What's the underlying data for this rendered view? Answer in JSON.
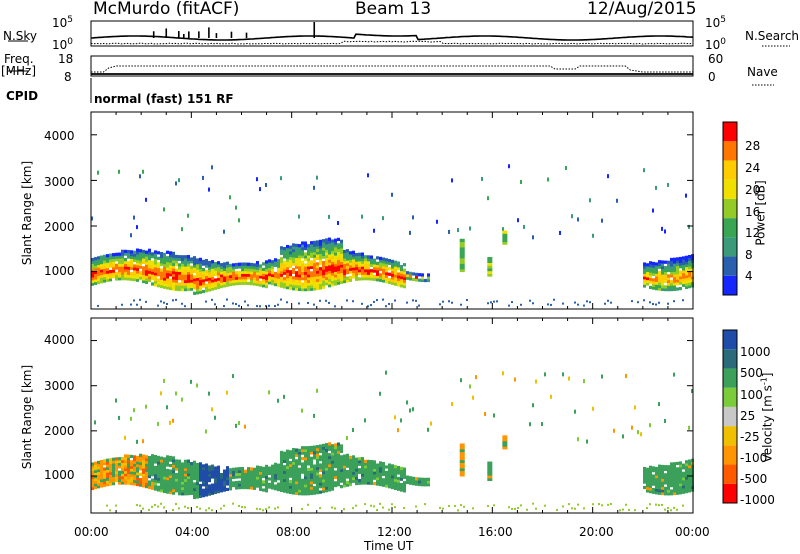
{
  "header": {
    "station": "McMurdo (fitACF)",
    "beam": "Beam 13",
    "date": "12/Aug/2015"
  },
  "top_panels": {
    "nsky_label": "N.Sky",
    "nsky_tick_hi": "10^5",
    "nsky_tick_lo": "10^0",
    "nsearch_label": "N.Search",
    "nsearch_tick_hi": "10^5",
    "nsearch_tick_lo": "10^0",
    "freq_label": "Freq.",
    "freq_unit": "[MHz]",
    "freq_tick_hi": "18",
    "freq_tick_lo": "8",
    "nave_label": "Nave",
    "nave_tick_hi": "60",
    "nave_tick_lo": "0",
    "cpid_label": "CPID",
    "cpid_value": "normal (fast) 151 RF"
  },
  "chart_data": [
    {
      "type": "heatmap",
      "title": "",
      "ylabel": "Slant Range [km]",
      "y_ticks": [
        "1000",
        "2000",
        "3000",
        "4000"
      ],
      "ylim": [
        180,
        4500
      ],
      "colorbar_label": "Power [dB]",
      "colorbar_ticks": [
        "28",
        "24",
        "20",
        "16",
        "12",
        "8",
        "4"
      ],
      "colorbar_colors": [
        "#ff0000",
        "#ff7700",
        "#ffcc00",
        "#f0e000",
        "#93cc26",
        "#3aa653",
        "#3b9a7a",
        "#2a5fb0",
        "#1626ff"
      ],
      "main_band": {
        "range_km": [
          600,
          1500
        ],
        "time_h": [
          [
            0.0,
            13.5
          ],
          [
            22.0,
            24.0
          ]
        ]
      }
    },
    {
      "type": "heatmap",
      "title": "",
      "ylabel": "Slant Range [km]",
      "y_ticks": [
        "1000",
        "2000",
        "3000",
        "4000"
      ],
      "ylim": [
        180,
        4500
      ],
      "colorbar_label": "Velocity [m s^-1]",
      "colorbar_ticks": [
        "1000",
        "500",
        "100",
        "25",
        "-25",
        "-100",
        "-500",
        "-1000"
      ],
      "colorbar_colors": [
        "#1f4ca8",
        "#2a6a7a",
        "#3aa05a",
        "#7acc3a",
        "#c8c8c8",
        "#f0c000",
        "#ff9500",
        "#ff5a00",
        "#ff0000"
      ],
      "main_band": {
        "range_km": [
          600,
          1500
        ],
        "time_h": [
          [
            0.0,
            13.5
          ],
          [
            22.0,
            24.0
          ]
        ]
      }
    }
  ],
  "x_axis": {
    "label": "Time UT",
    "ticks": [
      "00:00",
      "04:00",
      "08:00",
      "12:00",
      "16:00",
      "20:00",
      "00:00"
    ]
  }
}
